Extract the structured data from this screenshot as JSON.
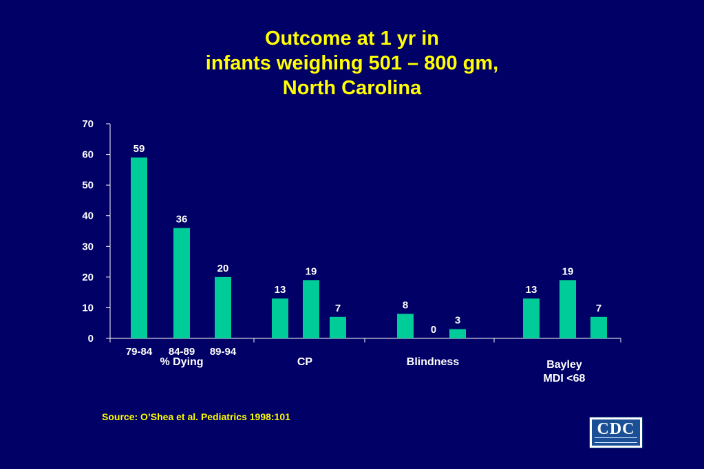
{
  "title": {
    "line1": "Outcome at 1 yr in",
    "line2": "infants weighing 501 – 800 gm,",
    "line3": "North Carolina"
  },
  "source": "Source: O’Shea et al. Pediatrics 1998:101",
  "logo": {
    "text": "CDC"
  },
  "colors": {
    "background": "#000066",
    "bar": "#00cc99",
    "text": "#ffffff",
    "title": "#ffff00",
    "axis": "#ffffff"
  },
  "chart_data": {
    "type": "bar",
    "title": "Outcome at 1 yr in infants weighing 501 – 800 gm, North Carolina",
    "xlabel": "",
    "ylabel": "",
    "ylim": [
      0,
      70
    ],
    "yticks": [
      0,
      10,
      20,
      30,
      40,
      50,
      60,
      70
    ],
    "grid": false,
    "legend": "none",
    "period_labels": [
      "79-84",
      "84-89",
      "89-94"
    ],
    "groups": [
      {
        "label": "% Dying",
        "values": [
          59,
          36,
          20
        ]
      },
      {
        "label": "CP",
        "values": [
          13,
          19,
          7
        ]
      },
      {
        "label": "Blindness",
        "values": [
          8,
          0,
          3
        ]
      },
      {
        "label": "Bayley\nMDI <68",
        "values": [
          13,
          19,
          7
        ]
      }
    ]
  }
}
